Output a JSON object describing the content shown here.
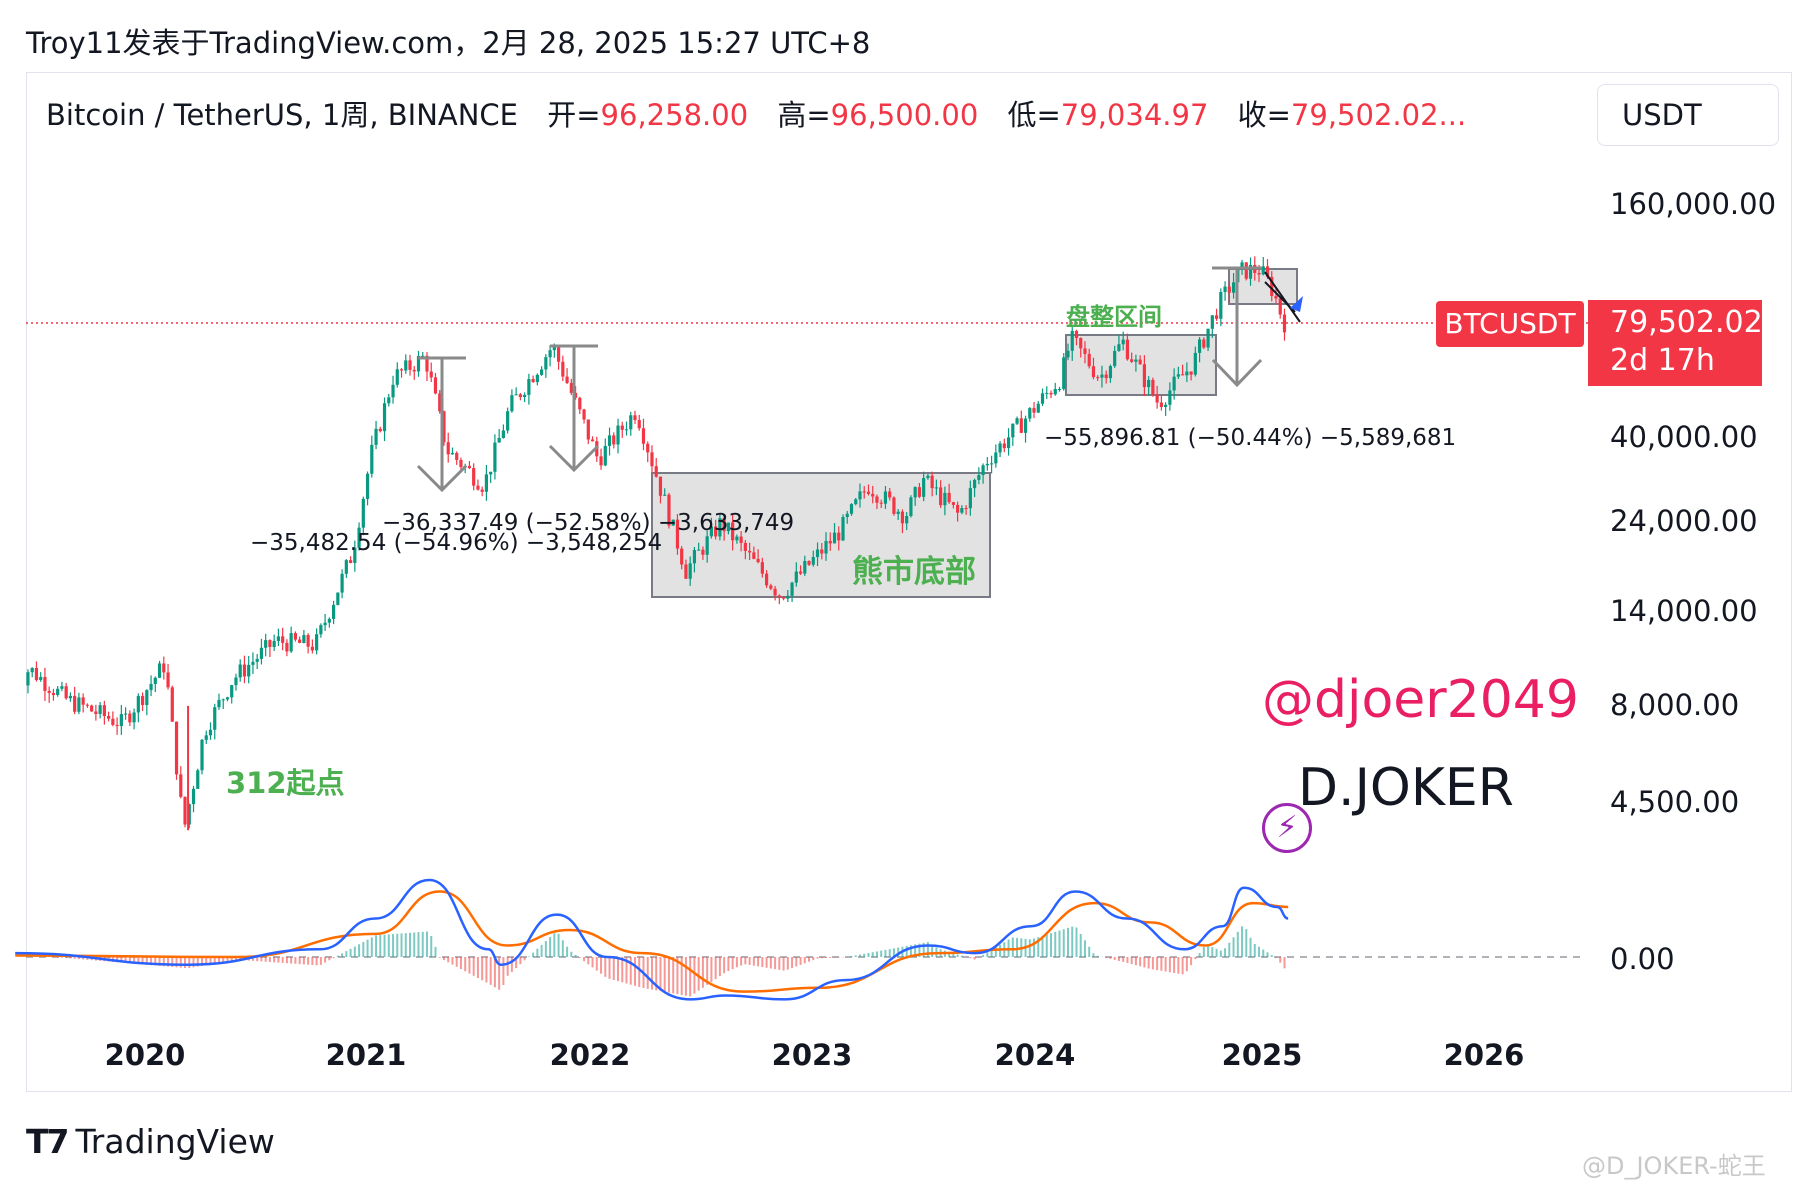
{
  "header": {
    "publish_line": "Troy11发表于TradingView.com，2月 28, 2025 15:27 UTC+8"
  },
  "legend": {
    "symbol_line": "Bitcoin / TetherUS, 1周, BINANCE",
    "open_key": "开=",
    "open_value": "96,258.00",
    "high_key": "高=",
    "high_value": "96,500.00",
    "low_key": "低=",
    "low_value": "79,034.97",
    "close_key": "收=",
    "close_value": "79,502.02...",
    "currency": "USDT"
  },
  "price_badge": {
    "symbol": "BTCUSDT",
    "price": "79,502.02",
    "countdown": "2d 17h"
  },
  "annotations": {
    "start_point": "312起点",
    "bear_bottom": "熊市底部",
    "consolidation": "盘整区间",
    "drawdown_2021a": "−35,482.54 (−54.96%) −3,548,254",
    "drawdown_2021b": "−36,337.49 (−52.58%) −3,633,749",
    "drawdown_2024": "−55,896.81 (−50.44%) −5,589,681"
  },
  "watermark": {
    "handle": "@djoer2049",
    "name": "D.JOKER",
    "icon": "lightning-bolt-icon"
  },
  "footer": {
    "brand": "TradingView",
    "credit": "@D_JOKER-蛇王"
  },
  "colors": {
    "up": "#089981",
    "down": "#f23645",
    "macd_line": "#2962ff",
    "signal_line": "#ff6d00",
    "label_green": "#4caf50",
    "handle_pink": "#e91e63"
  },
  "chart_data": [
    {
      "type": "candlestick",
      "title": "Bitcoin / TetherUS, 1周, BINANCE",
      "y_scale": "log",
      "y_ticks": [
        "160,000.00",
        "40,000.00",
        "24,000.00",
        "14,000.00",
        "8,000.00",
        "4,500.00"
      ],
      "x_ticks": [
        "2020",
        "2021",
        "2022",
        "2023",
        "2024",
        "2025",
        "2026"
      ],
      "last_price": 79502.02,
      "series": [
        {
          "name": "BTCUSDT",
          "points": [
            {
              "date": "2019-06-01",
              "close": 8500
            },
            {
              "date": "2019-07-01",
              "close": 10000
            },
            {
              "date": "2019-09-01",
              "close": 8300
            },
            {
              "date": "2019-12-01",
              "close": 7200
            },
            {
              "date": "2020-02-10",
              "close": 10300
            },
            {
              "date": "2020-03-12",
              "close": 3800
            },
            {
              "date": "2020-04-15",
              "close": 6900
            },
            {
              "date": "2020-06-01",
              "close": 9400
            },
            {
              "date": "2020-08-10",
              "close": 11800
            },
            {
              "date": "2020-10-15",
              "close": 11500
            },
            {
              "date": "2020-12-15",
              "close": 20000
            },
            {
              "date": "2021-01-15",
              "close": 36000
            },
            {
              "date": "2021-02-20",
              "close": 57000
            },
            {
              "date": "2021-04-14",
              "close": 64800
            },
            {
              "date": "2021-05-20",
              "close": 37000
            },
            {
              "date": "2021-07-20",
              "close": 30000
            },
            {
              "date": "2021-09-01",
              "close": 48000
            },
            {
              "date": "2021-11-10",
              "close": 69000
            },
            {
              "date": "2022-01-24",
              "close": 35000
            },
            {
              "date": "2022-03-28",
              "close": 47000
            },
            {
              "date": "2022-06-18",
              "close": 18000
            },
            {
              "date": "2022-08-15",
              "close": 24000
            },
            {
              "date": "2022-11-21",
              "close": 15500
            },
            {
              "date": "2023-03-01",
              "close": 23000
            },
            {
              "date": "2023-04-14",
              "close": 30000
            },
            {
              "date": "2023-06-15",
              "close": 25000
            },
            {
              "date": "2023-07-15",
              "close": 31000
            },
            {
              "date": "2023-09-11",
              "close": 25000
            },
            {
              "date": "2023-10-25",
              "close": 34500
            },
            {
              "date": "2023-12-20",
              "close": 43000
            },
            {
              "date": "2024-02-26",
              "close": 57000
            },
            {
              "date": "2024-03-14",
              "close": 72000
            },
            {
              "date": "2024-05-01",
              "close": 57000
            },
            {
              "date": "2024-06-07",
              "close": 71000
            },
            {
              "date": "2024-08-05",
              "close": 49000
            },
            {
              "date": "2024-10-01",
              "close": 62000
            },
            {
              "date": "2024-11-12",
              "close": 88000
            },
            {
              "date": "2024-12-17",
              "close": 108000
            },
            {
              "date": "2025-01-20",
              "close": 109000
            },
            {
              "date": "2025-02-10",
              "close": 96000
            },
            {
              "date": "2025-02-28",
              "close": 79502
            }
          ]
        }
      ]
    },
    {
      "type": "line",
      "y_ticks": [
        "0.00"
      ],
      "series": [
        {
          "name": "MACD",
          "points": [
            {
              "date": "2019-06-01",
              "value": 0.05
            },
            {
              "date": "2020-03-12",
              "value": -0.1
            },
            {
              "date": "2020-10-15",
              "value": 0.1
            },
            {
              "date": "2021-01-15",
              "value": 0.5
            },
            {
              "date": "2021-04-14",
              "value": 1.0
            },
            {
              "date": "2021-07-20",
              "value": 0.1
            },
            {
              "date": "2021-08-10",
              "value": -0.1
            },
            {
              "date": "2021-11-10",
              "value": 0.55
            },
            {
              "date": "2022-02-01",
              "value": 0.0
            },
            {
              "date": "2022-06-18",
              "value": -0.55
            },
            {
              "date": "2022-08-15",
              "value": -0.5
            },
            {
              "date": "2022-11-21",
              "value": -0.55
            },
            {
              "date": "2023-03-01",
              "value": -0.3
            },
            {
              "date": "2023-07-15",
              "value": 0.15
            },
            {
              "date": "2023-10-01",
              "value": 0.05
            },
            {
              "date": "2024-01-01",
              "value": 0.4
            },
            {
              "date": "2024-03-14",
              "value": 0.85
            },
            {
              "date": "2024-06-07",
              "value": 0.5
            },
            {
              "date": "2024-09-10",
              "value": 0.1
            },
            {
              "date": "2024-11-12",
              "value": 0.4
            },
            {
              "date": "2024-12-17",
              "value": 0.9
            },
            {
              "date": "2025-02-10",
              "value": 0.65
            },
            {
              "date": "2025-02-28",
              "value": 0.5
            }
          ]
        },
        {
          "name": "Signal",
          "points": [
            {
              "date": "2019-06-01",
              "value": 0.02
            },
            {
              "date": "2020-06-01",
              "value": 0.0
            },
            {
              "date": "2021-01-15",
              "value": 0.3
            },
            {
              "date": "2021-05-01",
              "value": 0.85
            },
            {
              "date": "2021-08-20",
              "value": 0.15
            },
            {
              "date": "2021-12-01",
              "value": 0.35
            },
            {
              "date": "2022-04-01",
              "value": 0.05
            },
            {
              "date": "2022-09-15",
              "value": -0.45
            },
            {
              "date": "2023-01-15",
              "value": -0.4
            },
            {
              "date": "2023-08-01",
              "value": 0.05
            },
            {
              "date": "2023-12-01",
              "value": 0.1
            },
            {
              "date": "2024-04-15",
              "value": 0.7
            },
            {
              "date": "2024-07-15",
              "value": 0.45
            },
            {
              "date": "2024-10-15",
              "value": 0.15
            },
            {
              "date": "2025-01-01",
              "value": 0.7
            },
            {
              "date": "2025-02-28",
              "value": 0.65
            }
          ]
        }
      ]
    }
  ]
}
